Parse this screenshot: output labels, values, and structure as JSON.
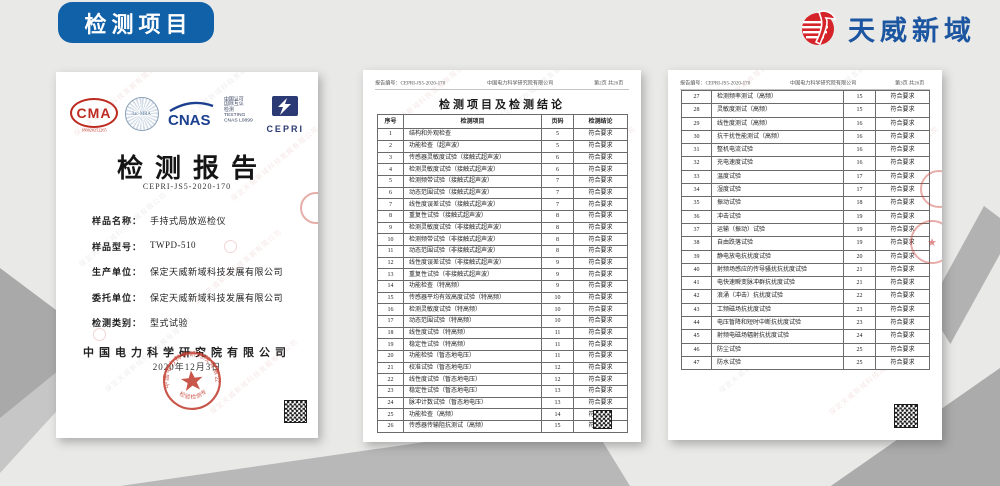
{
  "banner": {
    "label": "检测项目"
  },
  "brand": {
    "name": "天威新域",
    "accent_red": "#d5232a",
    "accent_blue": "#1c55a0"
  },
  "banner_color": "#1061a8",
  "watermark": {
    "text": "保定天威新域科技发展有限公司"
  },
  "cover": {
    "cma": {
      "text": "CMA",
      "number": "180020252265"
    },
    "ilac": {
      "text": "ilac-MRA"
    },
    "cnas": {
      "text": "CNAS"
    },
    "accreditation": {
      "lines": [
        "中国认可",
        "国际互认",
        "检测",
        "TESTING",
        "CNAS L0899"
      ]
    },
    "cepri": {
      "text": "CEPRI"
    },
    "title": "检测报告",
    "report_no": "CEPRI-JS5-2020-170",
    "fields": [
      {
        "label": "样品名称：",
        "value": "手持式局放巡检仪"
      },
      {
        "label": "样品型号：",
        "value": "TWPD-510"
      },
      {
        "label": "生产单位：",
        "value": "保定天威新域科技发展有限公司"
      },
      {
        "label": "委托单位：",
        "value": "保定天威新域科技发展有限公司"
      },
      {
        "label": "检测类别：",
        "value": "型式试验"
      }
    ],
    "org": "中国电力科学研究院有限公司",
    "date": "2020年12月3日",
    "stamp": {
      "ring_text": "中国电力科学研究院有限公司",
      "bottom_text": "检验检测专用章"
    }
  },
  "page2": {
    "header": {
      "report_no": "报告编号：CEPRI-JS5-2020-170",
      "org": "中国电力科学研究院有限公司",
      "page_info": "第2页 共26页"
    },
    "title": "检测项目及检测结论",
    "table": {
      "headers": [
        "序号",
        "检测项目",
        "页码",
        "检测结论"
      ],
      "rows": [
        [
          "1",
          "结构和外观检查",
          "5",
          "符合要求"
        ],
        [
          "2",
          "功能检查（超声波）",
          "5",
          "符合要求"
        ],
        [
          "3",
          "传感器灵敏度试验（接触式超声波）",
          "6",
          "符合要求"
        ],
        [
          "4",
          "检测灵敏度试验（接触式超声波）",
          "6",
          "符合要求"
        ],
        [
          "5",
          "检测频带试验（接触式超声波）",
          "7",
          "符合要求"
        ],
        [
          "6",
          "动态范围试验（接触式超声波）",
          "7",
          "符合要求"
        ],
        [
          "7",
          "线性度误差试验（接触式超声波）",
          "7",
          "符合要求"
        ],
        [
          "8",
          "重复性试验（接触式超声波）",
          "8",
          "符合要求"
        ],
        [
          "9",
          "检测灵敏度试验（非接触式超声波）",
          "8",
          "符合要求"
        ],
        [
          "10",
          "检测频带试验（非接触式超声波）",
          "8",
          "符合要求"
        ],
        [
          "11",
          "动态范围试验（非接触式超声波）",
          "8",
          "符合要求"
        ],
        [
          "12",
          "线性度误差试验（非接触式超声波）",
          "9",
          "符合要求"
        ],
        [
          "13",
          "重复性试验（非接触式超声波）",
          "9",
          "符合要求"
        ],
        [
          "14",
          "功能检查（特高频）",
          "9",
          "符合要求"
        ],
        [
          "15",
          "传感器平均有效高度试验（特高频）",
          "10",
          "符合要求"
        ],
        [
          "16",
          "检测灵敏度试验（特高频）",
          "10",
          "符合要求"
        ],
        [
          "17",
          "动态范围试验（特高频）",
          "10",
          "符合要求"
        ],
        [
          "18",
          "线性度试验（特高频）",
          "11",
          "符合要求"
        ],
        [
          "19",
          "稳定性试验（特高频）",
          "11",
          "符合要求"
        ],
        [
          "20",
          "功能检验（暂态地电压）",
          "11",
          "符合要求"
        ],
        [
          "21",
          "校准试验（暂态地电压）",
          "12",
          "符合要求"
        ],
        [
          "22",
          "线性度试验（暂态地电压）",
          "12",
          "符合要求"
        ],
        [
          "23",
          "稳定性试验（暂态地电压）",
          "13",
          "符合要求"
        ],
        [
          "24",
          "脉冲计数试验（暂态地电压）",
          "13",
          "符合要求"
        ],
        [
          "25",
          "功能检查（高频）",
          "14",
          "符合要求"
        ],
        [
          "26",
          "传感器传输阻抗测试（高频）",
          "15",
          "符合要求"
        ]
      ]
    }
  },
  "page3": {
    "header": {
      "report_no": "报告编号：CEPRI-JS5-2020-170",
      "org": "中国电力科学研究院有限公司",
      "page_info": "第3页 共26页"
    },
    "table": {
      "rows": [
        [
          "27",
          "检测频率测试（高频）",
          "15",
          "符合要求"
        ],
        [
          "28",
          "灵敏度测试（高频）",
          "15",
          "符合要求"
        ],
        [
          "29",
          "线性度测试（高频）",
          "16",
          "符合要求"
        ],
        [
          "30",
          "抗干扰性能测试（高频）",
          "16",
          "符合要求"
        ],
        [
          "31",
          "整机电流试验",
          "16",
          "符合要求"
        ],
        [
          "32",
          "充电速度试验",
          "16",
          "符合要求"
        ],
        [
          "33",
          "温度试验",
          "17",
          "符合要求"
        ],
        [
          "34",
          "湿度试验",
          "17",
          "符合要求"
        ],
        [
          "35",
          "振动试验",
          "18",
          "符合要求"
        ],
        [
          "36",
          "冲击试验",
          "19",
          "符合要求"
        ],
        [
          "37",
          "运输（振动）试验",
          "19",
          "符合要求"
        ],
        [
          "38",
          "自由跌落试验",
          "19",
          "符合要求"
        ],
        [
          "39",
          "静电放电抗扰度试验",
          "20",
          "符合要求"
        ],
        [
          "40",
          "射频场感应的传导骚扰抗扰度试验",
          "21",
          "符合要求"
        ],
        [
          "41",
          "电快速瞬变脉冲群抗扰度试验",
          "21",
          "符合要求"
        ],
        [
          "42",
          "浪涌（冲击）抗扰度试验",
          "22",
          "符合要求"
        ],
        [
          "43",
          "工频磁场抗扰度试验",
          "23",
          "符合要求"
        ],
        [
          "44",
          "电压暂降和短时中断抗扰度试验",
          "23",
          "符合要求"
        ],
        [
          "45",
          "射频电磁场辐射抗扰度试验",
          "24",
          "符合要求"
        ],
        [
          "46",
          "防尘试验",
          "25",
          "符合要求"
        ],
        [
          "47",
          "防水试验",
          "25",
          "符合要求"
        ]
      ]
    }
  }
}
